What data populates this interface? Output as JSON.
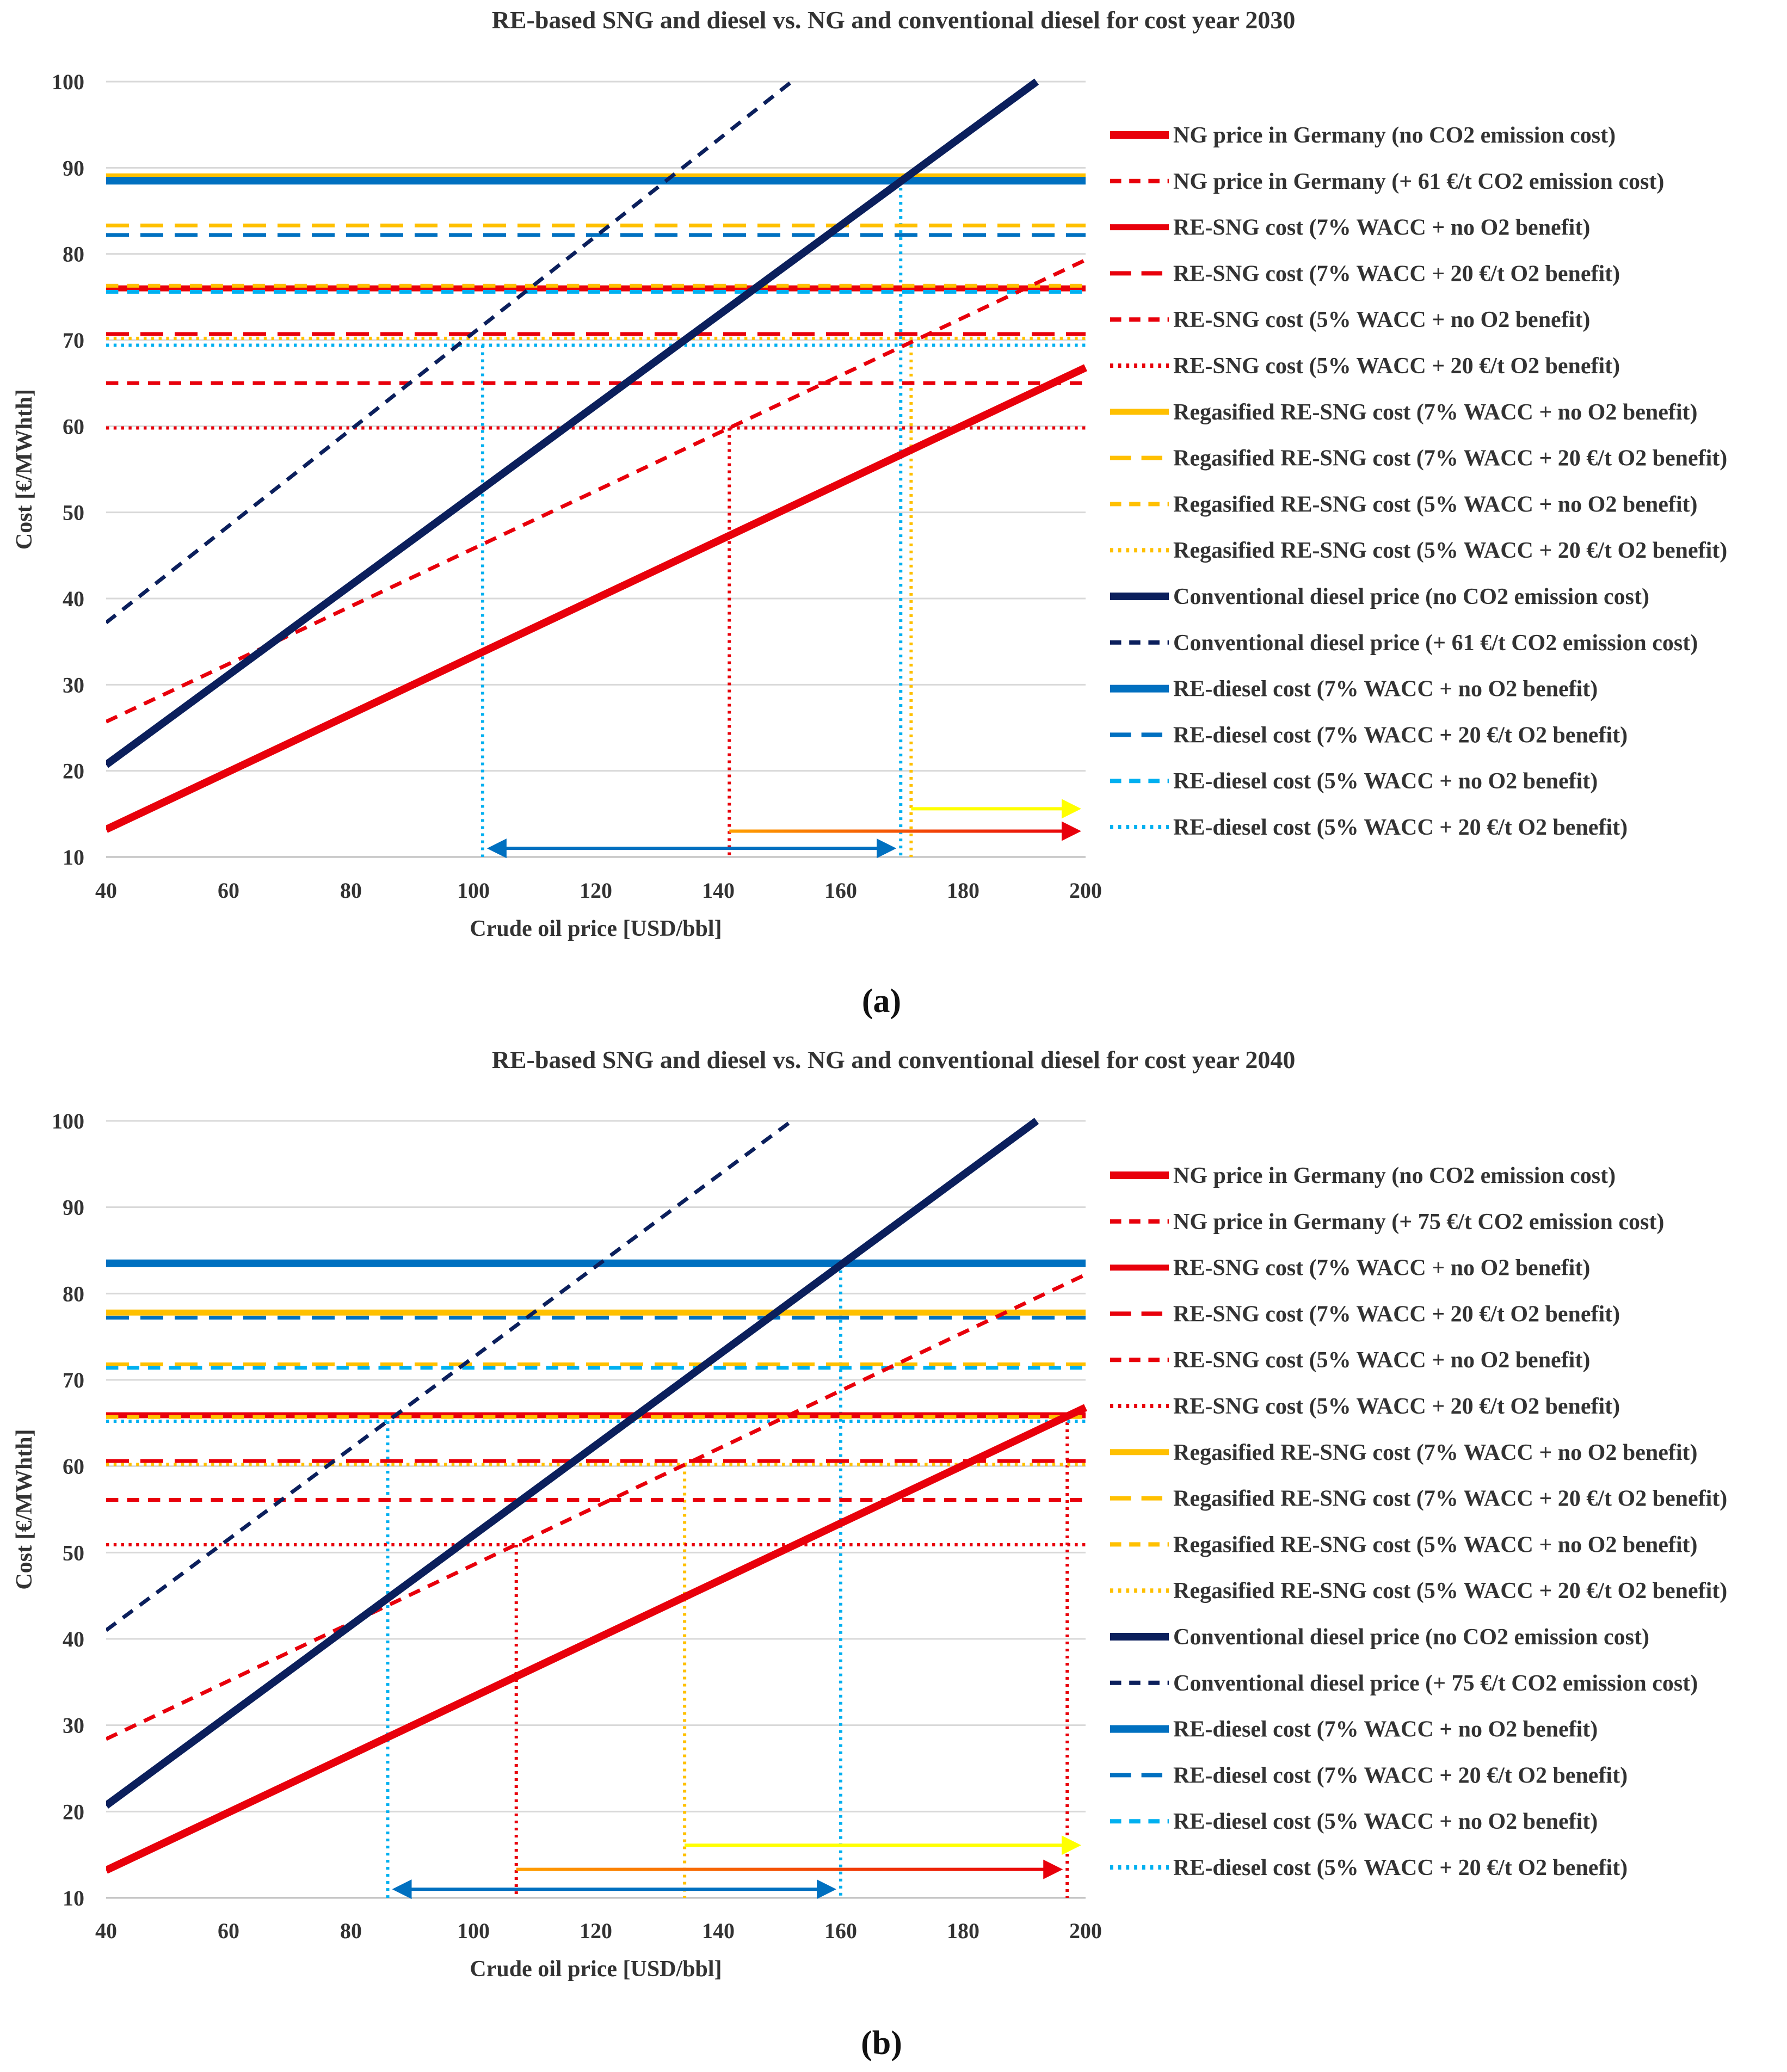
{
  "colors": {
    "red": "#e8000b",
    "orange": "#ffc000",
    "navy": "#0b1f5c",
    "blue": "#0070c0",
    "lightblue": "#00b0f0",
    "yellow": "#ffff00",
    "arrow_orange": "#ffa000"
  },
  "chart_data": [
    {
      "type": "line",
      "panel_label": "(a)",
      "title": "RE-based SNG and diesel vs. NG and conventional diesel for cost year 2030",
      "xlabel": "Crude oil price [USD/bbl]",
      "ylabel": "Cost [€/MWhth]",
      "xlim": [
        40,
        200
      ],
      "ylim": [
        10,
        100
      ],
      "xticks": [
        "40",
        "60",
        "80",
        "100",
        "120",
        "140",
        "160",
        "180",
        "200"
      ],
      "yticks": [
        "10",
        "20",
        "30",
        "40",
        "50",
        "60",
        "70",
        "80",
        "90",
        "100"
      ],
      "grid": true,
      "legend_position": "right",
      "series": [
        {
          "name": "NG price in Germany (no CO2 emission cost)",
          "color": "red",
          "style": "solid",
          "width": 14,
          "x": [
            40,
            200
          ],
          "y": [
            13.2,
            66.8
          ]
        },
        {
          "name": "NG price in Germany (+ 61 €/t CO2 emission cost)",
          "color": "red",
          "style": "dashed",
          "width": 7,
          "x": [
            40,
            200
          ],
          "y": [
            25.7,
            79.3
          ]
        },
        {
          "name": "RE-SNG cost (7% WACC + no O2 benefit)",
          "color": "red",
          "style": "solid",
          "width": 11,
          "x": [
            40,
            200
          ],
          "y": [
            76,
            76
          ]
        },
        {
          "name": "RE-SNG cost (7% WACC + 20 €/t O2 benefit)",
          "color": "red",
          "style": "longdash",
          "width": 7,
          "x": [
            40,
            200
          ],
          "y": [
            70.7,
            70.7
          ]
        },
        {
          "name": "RE-SNG cost (5% WACC + no O2 benefit)",
          "color": "red",
          "style": "dashed",
          "width": 7,
          "x": [
            40,
            200
          ],
          "y": [
            65,
            65
          ]
        },
        {
          "name": "RE-SNG cost (5% WACC + 20 €/t O2 benefit)",
          "color": "red",
          "style": "dotted",
          "width": 6,
          "x": [
            40,
            200
          ],
          "y": [
            59.8,
            59.8
          ]
        },
        {
          "name": "Regasified RE-SNG cost (7% WACC + no O2 benefit)",
          "color": "orange",
          "style": "solid",
          "width": 11,
          "x": [
            40,
            200
          ],
          "y": [
            89,
            89
          ]
        },
        {
          "name": "Regasified RE-SNG cost (7% WACC + 20 €/t O2 benefit)",
          "color": "orange",
          "style": "longdash",
          "width": 7,
          "x": [
            40,
            200
          ],
          "y": [
            83.3,
            83.3
          ]
        },
        {
          "name": "Regasified RE-SNG cost (5% WACC + no O2 benefit)",
          "color": "orange",
          "style": "dashed",
          "width": 7,
          "x": [
            40,
            200
          ],
          "y": [
            76.3,
            76.3
          ]
        },
        {
          "name": "Regasified RE-SNG cost (5% WACC + 20 €/t O2 benefit)",
          "color": "orange",
          "style": "dotted",
          "width": 6,
          "x": [
            40,
            200
          ],
          "y": [
            70.2,
            70.2
          ]
        },
        {
          "name": "Conventional diesel price (no CO2 emission cost)",
          "color": "navy",
          "style": "solid",
          "width": 14,
          "x": [
            40,
            192
          ],
          "y": [
            20.7,
            100
          ]
        },
        {
          "name": "Conventional diesel price (+ 61 €/t CO2 emission cost)",
          "color": "navy",
          "style": "dashed",
          "width": 7,
          "x": [
            40,
            152
          ],
          "y": [
            37.2,
            100
          ]
        },
        {
          "name": "RE-diesel cost (7% WACC + no O2 benefit)",
          "color": "blue",
          "style": "solid",
          "width": 14,
          "x": [
            40,
            200
          ],
          "y": [
            88.5,
            88.5
          ]
        },
        {
          "name": "RE-diesel cost (7% WACC + 20 €/t O2 benefit)",
          "color": "blue",
          "style": "longdash",
          "width": 7,
          "x": [
            40,
            200
          ],
          "y": [
            82.2,
            82.2
          ]
        },
        {
          "name": "RE-diesel cost (5% WACC + no O2 benefit)",
          "color": "lightblue",
          "style": "dashed",
          "width": 7,
          "x": [
            40,
            200
          ],
          "y": [
            75.6,
            75.6
          ]
        },
        {
          "name": "RE-diesel cost (5% WACC + 20 €/t O2 benefit)",
          "color": "lightblue",
          "style": "dotted",
          "width": 6,
          "x": [
            40,
            200
          ],
          "y": [
            69.4,
            69.4
          ]
        }
      ],
      "annotations": {
        "vertical_markers": [
          {
            "x": 101.5,
            "y": 69.4,
            "color": "blue"
          },
          {
            "x": 141.8,
            "y": 59.8,
            "color": "red"
          },
          {
            "x": 169.8,
            "y": 88.5,
            "color": "blue"
          },
          {
            "x": 171.5,
            "y": 70.2,
            "color": "orange"
          }
        ],
        "arrows": [
          {
            "x1": 101.5,
            "x2": 169.8,
            "y": 11,
            "color": "blue",
            "both_ends": true
          },
          {
            "x1": 141.8,
            "x2": 200,
            "y": 13,
            "color": "red",
            "both_ends": false
          },
          {
            "x1": 171.5,
            "x2": 200,
            "y": 15.6,
            "color": "yellow",
            "both_ends": false
          }
        ]
      }
    },
    {
      "type": "line",
      "panel_label": "(b)",
      "title": "RE-based SNG and diesel vs. NG and conventional diesel for cost year 2040",
      "xlabel": "Crude oil price [USD/bbl]",
      "ylabel": "Cost [€/MWhth]",
      "xlim": [
        40,
        200
      ],
      "ylim": [
        10,
        100
      ],
      "xticks": [
        "40",
        "60",
        "80",
        "100",
        "120",
        "140",
        "160",
        "180",
        "200"
      ],
      "yticks": [
        "10",
        "20",
        "30",
        "40",
        "50",
        "60",
        "70",
        "80",
        "90",
        "100"
      ],
      "grid": true,
      "legend_position": "right",
      "series": [
        {
          "name": "NG price in Germany (no CO2 emission cost)",
          "color": "red",
          "style": "solid",
          "width": 14,
          "x": [
            40,
            200
          ],
          "y": [
            13.2,
            66.8
          ]
        },
        {
          "name": "NG price in Germany (+ 75 €/t CO2 emission cost)",
          "color": "red",
          "style": "dashed",
          "width": 7,
          "x": [
            40,
            200
          ],
          "y": [
            28.4,
            82.2
          ]
        },
        {
          "name": "RE-SNG cost (7% WACC + no O2 benefit)",
          "color": "red",
          "style": "solid",
          "width": 11,
          "x": [
            40,
            200
          ],
          "y": [
            65.9,
            65.9
          ]
        },
        {
          "name": "RE-SNG cost (7% WACC + 20 €/t O2 benefit)",
          "color": "red",
          "style": "longdash",
          "width": 7,
          "x": [
            40,
            200
          ],
          "y": [
            60.6,
            60.6
          ]
        },
        {
          "name": "RE-SNG cost (5% WACC + no O2 benefit)",
          "color": "red",
          "style": "dashed",
          "width": 7,
          "x": [
            40,
            200
          ],
          "y": [
            56.1,
            56.1
          ]
        },
        {
          "name": "RE-SNG cost (5% WACC + 20 €/t O2 benefit)",
          "color": "red",
          "style": "dotted",
          "width": 6,
          "x": [
            40,
            200
          ],
          "y": [
            50.9,
            50.9
          ]
        },
        {
          "name": "Regasified RE-SNG cost (7% WACC + no O2 benefit)",
          "color": "orange",
          "style": "solid",
          "width": 11,
          "x": [
            40,
            200
          ],
          "y": [
            77.8,
            77.8
          ]
        },
        {
          "name": "Regasified RE-SNG cost (7% WACC + 20 €/t O2 benefit)",
          "color": "orange",
          "style": "longdash",
          "width": 7,
          "x": [
            40,
            200
          ],
          "y": [
            71.8,
            71.8
          ]
        },
        {
          "name": "Regasified RE-SNG cost (5% WACC + no O2 benefit)",
          "color": "orange",
          "style": "dashed",
          "width": 7,
          "x": [
            40,
            200
          ],
          "y": [
            65.7,
            65.7
          ]
        },
        {
          "name": "Regasified RE-SNG cost (5% WACC + 20 €/t O2 benefit)",
          "color": "orange",
          "style": "dotted",
          "width": 6,
          "x": [
            40,
            200
          ],
          "y": [
            60.2,
            60.2
          ]
        },
        {
          "name": "Conventional diesel price (no CO2 emission cost)",
          "color": "navy",
          "style": "solid",
          "width": 14,
          "x": [
            40,
            192
          ],
          "y": [
            20.7,
            100
          ]
        },
        {
          "name": "Conventional diesel price (+ 75 €/t CO2 emission cost)",
          "color": "navy",
          "style": "dashed",
          "width": 7,
          "x": [
            40,
            152
          ],
          "y": [
            41,
            100
          ]
        },
        {
          "name": "RE-diesel cost (7% WACC + no O2 benefit)",
          "color": "blue",
          "style": "solid",
          "width": 14,
          "x": [
            40,
            200
          ],
          "y": [
            83.5,
            83.5
          ]
        },
        {
          "name": "RE-diesel cost (7% WACC + 20 €/t O2 benefit)",
          "color": "blue",
          "style": "longdash",
          "width": 7,
          "x": [
            40,
            200
          ],
          "y": [
            77.2,
            77.2
          ]
        },
        {
          "name": "RE-diesel cost (5% WACC + no O2 benefit)",
          "color": "lightblue",
          "style": "dashed",
          "width": 7,
          "x": [
            40,
            200
          ],
          "y": [
            71.4,
            71.4
          ]
        },
        {
          "name": "RE-diesel cost (5% WACC + 20 €/t O2 benefit)",
          "color": "lightblue",
          "style": "dotted",
          "width": 6,
          "x": [
            40,
            200
          ],
          "y": [
            65.2,
            65.2
          ]
        }
      ],
      "annotations": {
        "vertical_markers": [
          {
            "x": 86,
            "y": 65.2,
            "color": "blue"
          },
          {
            "x": 107,
            "y": 50.9,
            "color": "red"
          },
          {
            "x": 134.5,
            "y": 60.2,
            "color": "orange"
          },
          {
            "x": 160,
            "y": 83.5,
            "color": "blue"
          },
          {
            "x": 197,
            "y": 65.9,
            "color": "red"
          }
        ],
        "arrows": [
          {
            "x1": 86,
            "x2": 160,
            "y": 11,
            "color": "blue",
            "both_ends": true
          },
          {
            "x1": 107,
            "x2": 197,
            "y": 13.3,
            "color": "red",
            "both_ends": false
          },
          {
            "x1": 134.5,
            "x2": 200,
            "y": 16.1,
            "color": "yellow",
            "both_ends": false
          }
        ]
      }
    }
  ]
}
